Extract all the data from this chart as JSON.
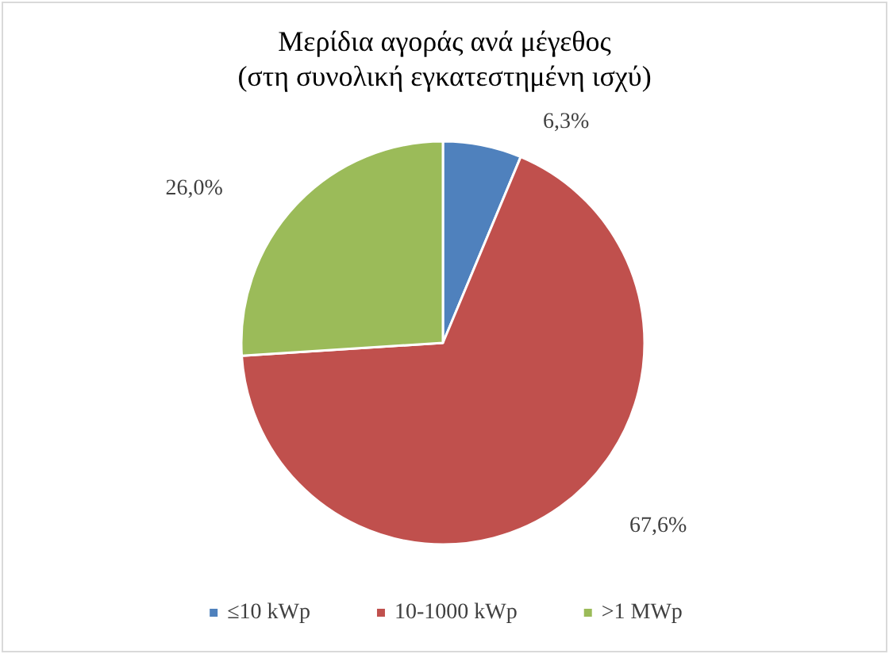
{
  "chart_data": {
    "type": "pie",
    "title": "Μερίδια αγοράς ανά μέγεθος",
    "subtitle": "(στη συνολική εγκατεστημένη ισχύ)",
    "categories": [
      "≤10 kWp",
      "10-1000 kWp",
      ">1 MWp"
    ],
    "values": [
      6.3,
      67.6,
      26.0
    ],
    "colors": [
      "#4f81bd",
      "#c0504d",
      "#9bbb59"
    ],
    "value_labels": [
      "6,3%",
      "67,6%",
      "26,0%"
    ],
    "legend": "bottom"
  }
}
